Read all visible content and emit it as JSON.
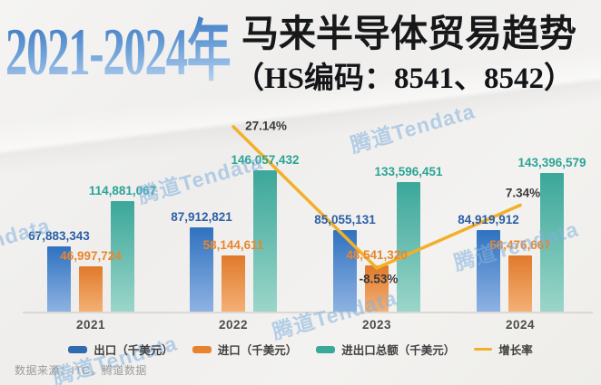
{
  "title": {
    "years": "2021-2024年",
    "main": "马来半导体贸易趋势",
    "sub": "（HS编码：8541、8542）"
  },
  "watermark": "腾道Tendata",
  "source": "数据来源：ITC，腾道数据",
  "colors": {
    "export_bar_top": "#2f72c0",
    "export_bar_bottom": "#8fb3e2",
    "import_bar_top": "#e07a2b",
    "import_bar_bottom": "#f4b176",
    "total_bar_top": "#3ba79a",
    "total_bar_bottom": "#9bd6c9",
    "export_label": "#2c5ea6",
    "import_label": "#e8862e",
    "total_label": "#2ba495",
    "growth_line": "#f2b02a",
    "growth_label": "#3a3a3a",
    "watermark": "#82b0de",
    "background": "#f2f1ef"
  },
  "legend": [
    {
      "label": "出口（千美元）",
      "swatch": "rect",
      "color": "#2e6cb2",
      "key": "export"
    },
    {
      "label": "进口（千美元）",
      "swatch": "rect",
      "color": "#e8832d",
      "key": "import"
    },
    {
      "label": "进出口总额（千美元）",
      "swatch": "rect",
      "color": "#3aa99c",
      "key": "total"
    },
    {
      "label": "增长率",
      "swatch": "line",
      "color": "#f2b02a",
      "key": "growth"
    }
  ],
  "chart_data": {
    "type": "bar",
    "categories": [
      "2021",
      "2022",
      "2023",
      "2024"
    ],
    "series": [
      {
        "key": "export",
        "name": "出口（千美元）",
        "values": [
          67883343,
          87912821,
          85055131,
          84919912
        ]
      },
      {
        "key": "import",
        "name": "进口（千美元）",
        "values": [
          46997724,
          58144611,
          48541320,
          58476667
        ]
      },
      {
        "key": "total",
        "name": "进出口总额（千美元）",
        "values": [
          114881067,
          146057432,
          133596451,
          143396579
        ]
      }
    ],
    "line_series": {
      "key": "growth",
      "name": "增长率",
      "type": "line",
      "unit": "%",
      "categories": [
        "2022",
        "2023",
        "2024"
      ],
      "values": [
        27.14,
        -8.53,
        7.34
      ]
    },
    "value_axis_visible": false,
    "grid": false,
    "legend_position": "bottom",
    "data_labels": true
  }
}
